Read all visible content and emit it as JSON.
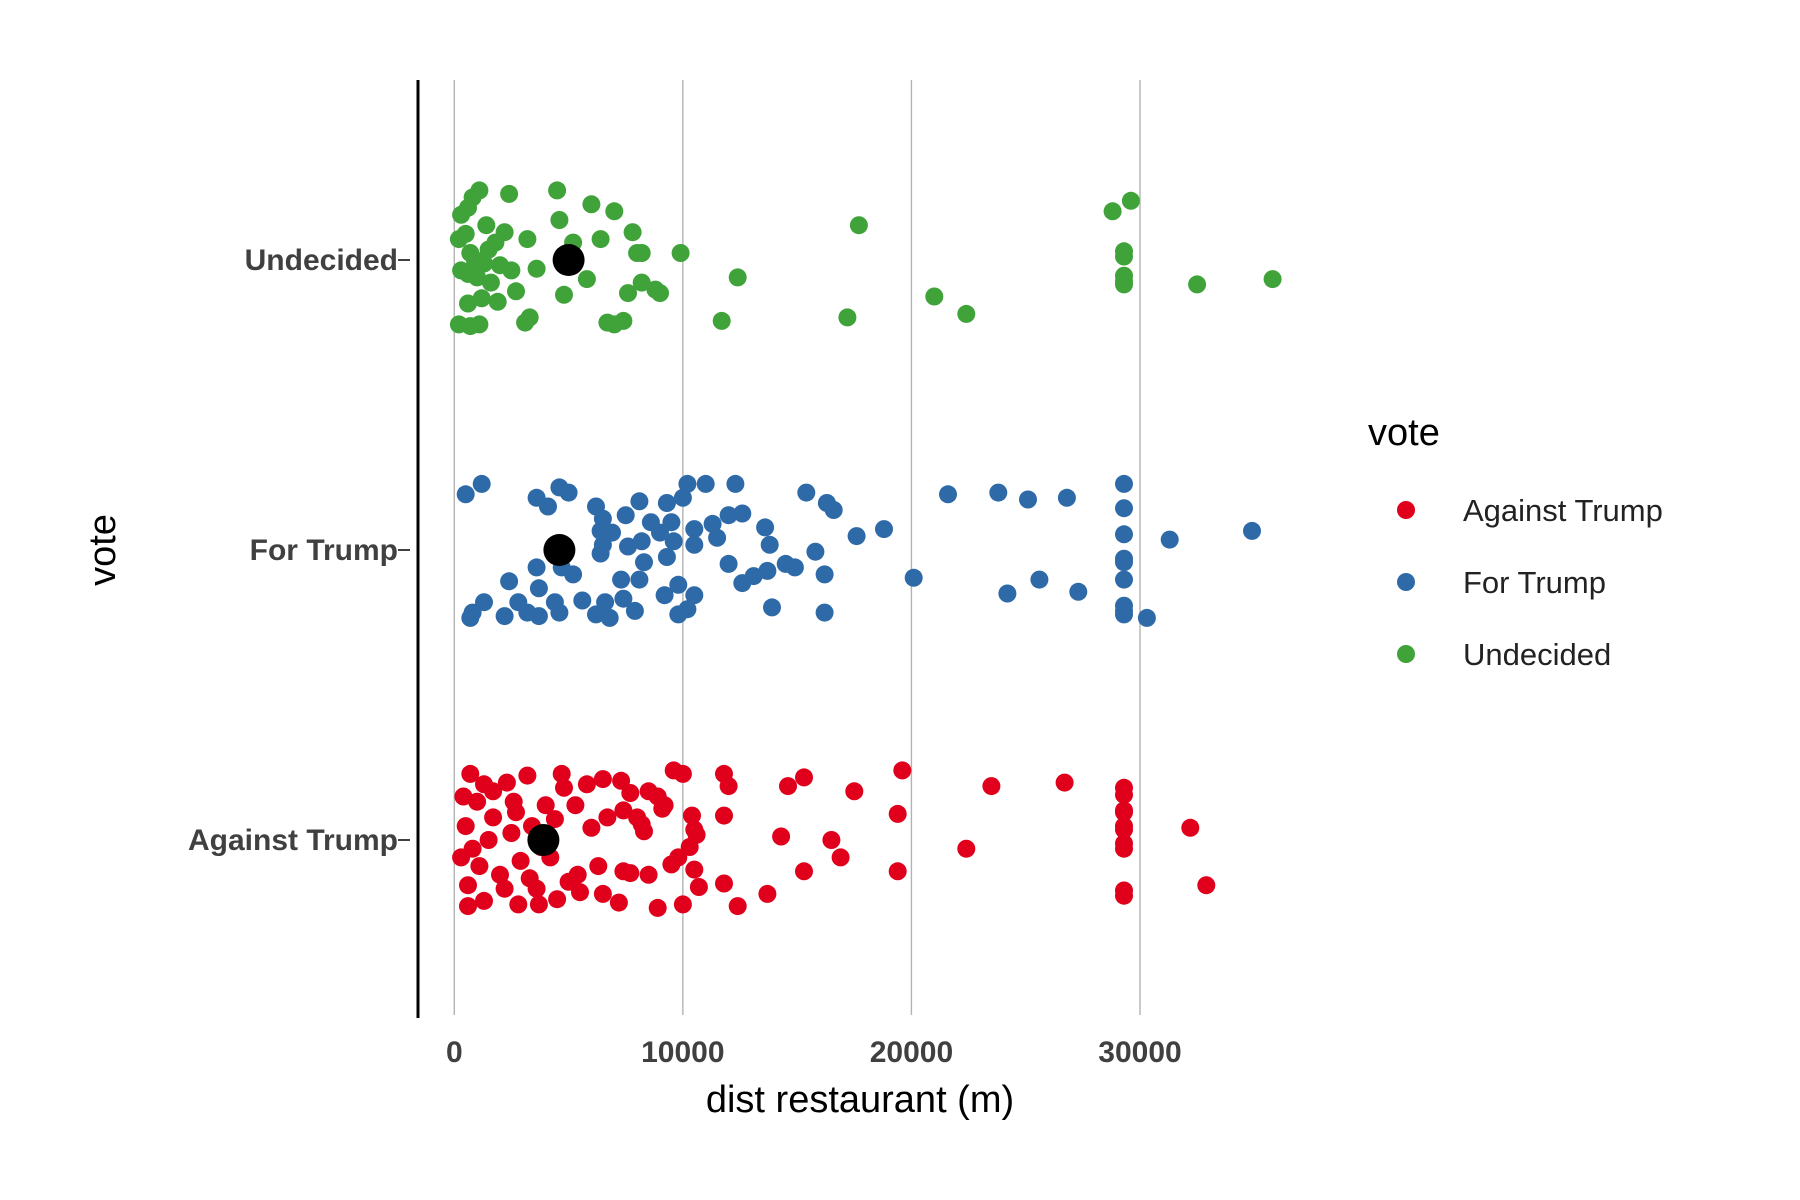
{
  "chart_data": {
    "type": "scatter",
    "title": "",
    "xlabel": "dist restaurant (m)",
    "ylabel": "vote",
    "xlim": [
      -1500,
      37000
    ],
    "x_ticks": [
      "0",
      "10000",
      "20000",
      "30000"
    ],
    "categories": [
      "Against Trump",
      "For Trump",
      "Undecided"
    ],
    "grid": "vertical major lines",
    "legend": {
      "title": "vote",
      "position": "right",
      "entries": [
        "Against Trump",
        "For Trump",
        "Undecided"
      ]
    },
    "colors": {
      "Against Trump": "#e0001b",
      "For Trump": "#2f6aa8",
      "Undecided": "#3fa33a",
      "mean": "#000000"
    },
    "series": [
      {
        "name": "Undecided",
        "mean": 5000,
        "points": [
          [
            4500,
            0.4
          ],
          [
            6000,
            0.32
          ],
          [
            7000,
            0.28
          ],
          [
            2400,
            0.38
          ],
          [
            1100,
            0.4
          ],
          [
            800,
            0.36
          ],
          [
            600,
            0.3
          ],
          [
            300,
            0.26
          ],
          [
            200,
            0.12
          ],
          [
            700,
            0.04
          ],
          [
            1400,
            0.2
          ],
          [
            1800,
            0.1
          ],
          [
            2200,
            0.16
          ],
          [
            3200,
            0.12
          ],
          [
            4600,
            0.23
          ],
          [
            5200,
            0.1
          ],
          [
            6400,
            0.12
          ],
          [
            7800,
            0.16
          ],
          [
            8000,
            0.04
          ],
          [
            8200,
            0.04
          ],
          [
            9900,
            0.04
          ],
          [
            2500,
            -0.06
          ],
          [
            3600,
            -0.05
          ],
          [
            300,
            -0.06
          ],
          [
            600,
            -0.08
          ],
          [
            1000,
            -0.1
          ],
          [
            1600,
            -0.13
          ],
          [
            2700,
            -0.18
          ],
          [
            4800,
            -0.2
          ],
          [
            5800,
            -0.11
          ],
          [
            7600,
            -0.19
          ],
          [
            8200,
            -0.13
          ],
          [
            8800,
            -0.17
          ],
          [
            9000,
            -0.19
          ],
          [
            12400,
            -0.1
          ],
          [
            600,
            -0.25
          ],
          [
            1200,
            -0.22
          ],
          [
            1900,
            -0.24
          ],
          [
            200,
            -0.37
          ],
          [
            700,
            -0.38
          ],
          [
            1100,
            -0.37
          ],
          [
            3300,
            -0.33
          ],
          [
            3100,
            -0.36
          ],
          [
            6700,
            -0.36
          ],
          [
            7000,
            -0.37
          ],
          [
            7400,
            -0.35
          ],
          [
            11700,
            -0.35
          ],
          [
            17200,
            -0.33
          ],
          [
            17700,
            0.2
          ],
          [
            21000,
            -0.21
          ],
          [
            22400,
            -0.31
          ],
          [
            28800,
            0.28
          ],
          [
            29600,
            0.34
          ],
          [
            29300,
            0.05
          ],
          [
            29300,
            0.02
          ],
          [
            29300,
            -0.09
          ],
          [
            29300,
            -0.12
          ],
          [
            29300,
            -0.14
          ],
          [
            32500,
            -0.14
          ],
          [
            35800,
            -0.11
          ],
          [
            1500,
            0.06
          ],
          [
            2000,
            -0.03
          ],
          [
            900,
            0.0
          ],
          [
            1300,
            -0.02
          ],
          [
            500,
            0.15
          ]
        ]
      },
      {
        "name": "For Trump",
        "mean": 4600,
        "points": [
          [
            11000,
            0.38
          ],
          [
            12300,
            0.38
          ],
          [
            15400,
            0.33
          ],
          [
            16300,
            0.27
          ],
          [
            16600,
            0.23
          ],
          [
            21600,
            0.32
          ],
          [
            23800,
            0.33
          ],
          [
            25100,
            0.29
          ],
          [
            26800,
            0.3
          ],
          [
            29300,
            0.38
          ],
          [
            29300,
            0.24
          ],
          [
            10200,
            0.38
          ],
          [
            10000,
            0.3
          ],
          [
            9300,
            0.27
          ],
          [
            8100,
            0.28
          ],
          [
            6200,
            0.25
          ],
          [
            5000,
            0.33
          ],
          [
            4600,
            0.36
          ],
          [
            3600,
            0.3
          ],
          [
            1200,
            0.38
          ],
          [
            500,
            0.32
          ],
          [
            12600,
            0.21
          ],
          [
            12000,
            0.2
          ],
          [
            9500,
            0.16
          ],
          [
            8600,
            0.16
          ],
          [
            7500,
            0.2
          ],
          [
            6500,
            0.18
          ],
          [
            4100,
            0.25
          ],
          [
            17600,
            0.08
          ],
          [
            18800,
            0.12
          ],
          [
            13600,
            0.13
          ],
          [
            11300,
            0.15
          ],
          [
            10500,
            0.12
          ],
          [
            9000,
            0.1
          ],
          [
            8200,
            0.05
          ],
          [
            6900,
            0.1
          ],
          [
            6400,
            0.11
          ],
          [
            29300,
            0.09
          ],
          [
            31300,
            0.06
          ],
          [
            34900,
            0.11
          ],
          [
            13800,
            0.03
          ],
          [
            11500,
            0.07
          ],
          [
            10500,
            0.03
          ],
          [
            9600,
            0.05
          ],
          [
            7600,
            0.02
          ],
          [
            6500,
            0.03
          ],
          [
            15800,
            -0.01
          ],
          [
            12000,
            -0.08
          ],
          [
            14500,
            -0.08
          ],
          [
            13700,
            -0.12
          ],
          [
            13100,
            -0.15
          ],
          [
            12600,
            -0.19
          ],
          [
            14900,
            -0.1
          ],
          [
            16200,
            -0.14
          ],
          [
            9300,
            -0.04
          ],
          [
            8300,
            -0.07
          ],
          [
            6400,
            -0.02
          ],
          [
            29300,
            -0.05
          ],
          [
            29300,
            -0.07
          ],
          [
            20100,
            -0.16
          ],
          [
            25600,
            -0.17
          ],
          [
            24200,
            -0.25
          ],
          [
            27300,
            -0.24
          ],
          [
            29300,
            -0.17
          ],
          [
            7300,
            -0.17
          ],
          [
            8100,
            -0.17
          ],
          [
            9800,
            -0.2
          ],
          [
            10500,
            -0.26
          ],
          [
            9200,
            -0.26
          ],
          [
            7400,
            -0.28
          ],
          [
            6600,
            -0.3
          ],
          [
            5600,
            -0.29
          ],
          [
            4400,
            -0.3
          ],
          [
            2800,
            -0.3
          ],
          [
            1300,
            -0.3
          ],
          [
            800,
            -0.36
          ],
          [
            700,
            -0.39
          ],
          [
            2200,
            -0.38
          ],
          [
            3200,
            -0.36
          ],
          [
            3700,
            -0.38
          ],
          [
            4600,
            -0.36
          ],
          [
            6200,
            -0.37
          ],
          [
            6800,
            -0.39
          ],
          [
            7900,
            -0.35
          ],
          [
            9800,
            -0.37
          ],
          [
            10200,
            -0.34
          ],
          [
            13900,
            -0.33
          ],
          [
            16200,
            -0.36
          ],
          [
            29300,
            -0.32
          ],
          [
            29300,
            -0.37
          ],
          [
            30300,
            -0.39
          ],
          [
            29300,
            -0.35
          ],
          [
            3700,
            -0.22
          ],
          [
            2400,
            -0.18
          ],
          [
            3600,
            -0.1
          ],
          [
            4700,
            -0.1
          ],
          [
            5200,
            -0.14
          ]
        ]
      },
      {
        "name": "Against Trump",
        "mean": 3900,
        "points": [
          [
            9600,
            0.4
          ],
          [
            10000,
            0.38
          ],
          [
            11800,
            0.38
          ],
          [
            12000,
            0.31
          ],
          [
            14600,
            0.31
          ],
          [
            15300,
            0.36
          ],
          [
            17500,
            0.28
          ],
          [
            19600,
            0.4
          ],
          [
            23500,
            0.31
          ],
          [
            26700,
            0.33
          ],
          [
            29300,
            0.3
          ],
          [
            29300,
            0.26
          ],
          [
            29300,
            0.17
          ],
          [
            29300,
            0.16
          ],
          [
            29300,
            0.08
          ],
          [
            29300,
            0.06
          ],
          [
            32200,
            0.07
          ],
          [
            29300,
            -0.02
          ],
          [
            29300,
            -0.05
          ],
          [
            22400,
            -0.05
          ],
          [
            7700,
            0.27
          ],
          [
            8500,
            0.28
          ],
          [
            8900,
            0.25
          ],
          [
            9200,
            0.2
          ],
          [
            9100,
            0.18
          ],
          [
            11800,
            0.14
          ],
          [
            10400,
            0.14
          ],
          [
            10500,
            0.06
          ],
          [
            10600,
            0.03
          ],
          [
            7400,
            0.17
          ],
          [
            6700,
            0.13
          ],
          [
            6000,
            0.07
          ],
          [
            5300,
            0.2
          ],
          [
            4400,
            0.12
          ],
          [
            4000,
            0.2
          ],
          [
            4800,
            0.3
          ],
          [
            5800,
            0.32
          ],
          [
            6500,
            0.35
          ],
          [
            7300,
            0.34
          ],
          [
            8000,
            0.13
          ],
          [
            8300,
            0.05
          ],
          [
            8200,
            0.09
          ],
          [
            14300,
            0.02
          ],
          [
            16500,
            0.0
          ],
          [
            16900,
            -0.1
          ],
          [
            15300,
            -0.18
          ],
          [
            19400,
            -0.18
          ],
          [
            19400,
            0.15
          ],
          [
            10300,
            -0.04
          ],
          [
            9800,
            -0.1
          ],
          [
            10500,
            -0.17
          ],
          [
            11800,
            -0.25
          ],
          [
            10700,
            -0.27
          ],
          [
            13700,
            -0.31
          ],
          [
            12400,
            -0.38
          ],
          [
            8900,
            -0.39
          ],
          [
            7200,
            -0.36
          ],
          [
            6500,
            -0.31
          ],
          [
            5500,
            -0.3
          ],
          [
            5000,
            -0.24
          ],
          [
            3600,
            -0.28
          ],
          [
            4500,
            -0.34
          ],
          [
            5400,
            -0.2
          ],
          [
            6300,
            -0.15
          ],
          [
            7400,
            -0.18
          ],
          [
            7700,
            -0.19
          ],
          [
            8500,
            -0.2
          ],
          [
            9500,
            -0.14
          ],
          [
            10000,
            -0.37
          ],
          [
            32900,
            -0.26
          ],
          [
            29300,
            -0.29
          ],
          [
            29300,
            -0.32
          ],
          [
            3200,
            0.37
          ],
          [
            4700,
            0.38
          ],
          [
            2300,
            0.33
          ],
          [
            1300,
            0.32
          ],
          [
            700,
            0.38
          ],
          [
            400,
            0.25
          ],
          [
            1000,
            0.22
          ],
          [
            1700,
            0.13
          ],
          [
            2700,
            0.16
          ],
          [
            3400,
            0.08
          ],
          [
            2500,
            0.04
          ],
          [
            1500,
            0.0
          ],
          [
            800,
            -0.05
          ],
          [
            300,
            -0.1
          ],
          [
            1100,
            -0.15
          ],
          [
            2000,
            -0.2
          ],
          [
            2900,
            -0.12
          ],
          [
            3800,
            -0.04
          ],
          [
            4200,
            -0.1
          ],
          [
            2200,
            -0.28
          ],
          [
            1300,
            -0.35
          ],
          [
            600,
            -0.38
          ],
          [
            2800,
            -0.37
          ],
          [
            3700,
            -0.37
          ],
          [
            3300,
            -0.22
          ],
          [
            500,
            0.08
          ],
          [
            1700,
            0.28
          ],
          [
            2600,
            0.22
          ],
          [
            600,
            -0.26
          ]
        ]
      }
    ]
  }
}
